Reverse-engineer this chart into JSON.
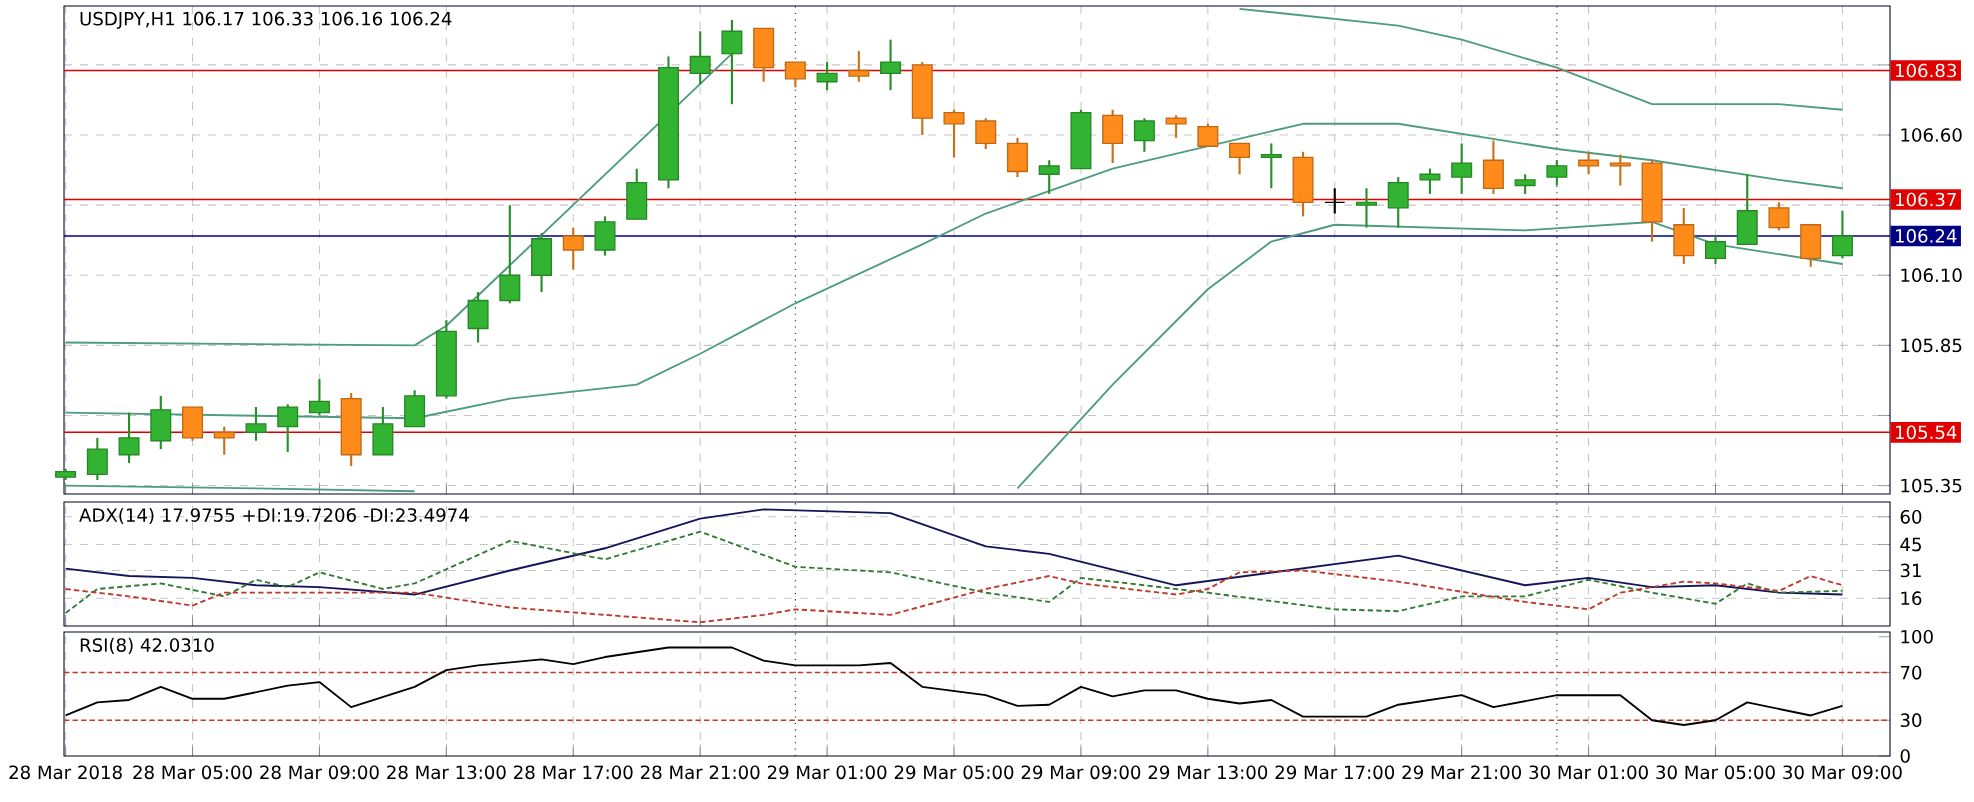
{
  "chart_data": [
    {
      "type": "candlestick",
      "title": "USDJPY,H1 106.17 106.33 106.16 106.24",
      "x": [
        "2018-03-28T01:00",
        "2018-03-28T02:00",
        "2018-03-28T03:00",
        "2018-03-28T04:00",
        "2018-03-28T05:00",
        "2018-03-28T06:00",
        "2018-03-28T07:00",
        "2018-03-28T08:00",
        "2018-03-28T09:00",
        "2018-03-28T10:00",
        "2018-03-28T11:00",
        "2018-03-28T12:00",
        "2018-03-28T13:00",
        "2018-03-28T14:00",
        "2018-03-28T15:00",
        "2018-03-28T16:00",
        "2018-03-28T17:00",
        "2018-03-28T18:00",
        "2018-03-28T19:00",
        "2018-03-28T20:00",
        "2018-03-28T21:00",
        "2018-03-28T22:00",
        "2018-03-28T23:00",
        "2018-03-29T00:00",
        "2018-03-29T01:00",
        "2018-03-29T02:00",
        "2018-03-29T03:00",
        "2018-03-29T04:00",
        "2018-03-29T05:00",
        "2018-03-29T06:00",
        "2018-03-29T07:00",
        "2018-03-29T08:00",
        "2018-03-29T09:00",
        "2018-03-29T10:00",
        "2018-03-29T11:00",
        "2018-03-29T12:00",
        "2018-03-29T13:00",
        "2018-03-29T14:00",
        "2018-03-29T15:00",
        "2018-03-29T16:00",
        "2018-03-29T17:00",
        "2018-03-29T18:00",
        "2018-03-29T19:00",
        "2018-03-29T20:00",
        "2018-03-29T21:00",
        "2018-03-29T22:00",
        "2018-03-29T23:00",
        "2018-03-30T00:00",
        "2018-03-30T01:00",
        "2018-03-30T02:00",
        "2018-03-30T03:00",
        "2018-03-30T04:00",
        "2018-03-30T05:00",
        "2018-03-30T06:00",
        "2018-03-30T07:00",
        "2018-03-30T08:00",
        "2018-03-30T09:00"
      ],
      "ohlc": [
        [
          105.38,
          105.41,
          105.37,
          105.4
        ],
        [
          105.39,
          105.52,
          105.37,
          105.48
        ],
        [
          105.46,
          105.61,
          105.43,
          105.52
        ],
        [
          105.51,
          105.67,
          105.48,
          105.62
        ],
        [
          105.63,
          105.63,
          105.51,
          105.52
        ],
        [
          105.54,
          105.56,
          105.46,
          105.52
        ],
        [
          105.54,
          105.63,
          105.51,
          105.57
        ],
        [
          105.56,
          105.64,
          105.47,
          105.63
        ],
        [
          105.61,
          105.73,
          105.6,
          105.65
        ],
        [
          105.66,
          105.68,
          105.42,
          105.46
        ],
        [
          105.46,
          105.63,
          105.46,
          105.57
        ],
        [
          105.56,
          105.69,
          105.56,
          105.67
        ],
        [
          105.67,
          105.94,
          105.66,
          105.9
        ],
        [
          105.91,
          106.04,
          105.86,
          106.01
        ],
        [
          106.01,
          106.35,
          106.0,
          106.1
        ],
        [
          106.1,
          106.25,
          106.04,
          106.23
        ],
        [
          106.24,
          106.27,
          106.12,
          106.19
        ],
        [
          106.19,
          106.31,
          106.17,
          106.29
        ],
        [
          106.3,
          106.48,
          106.3,
          106.43
        ],
        [
          106.44,
          106.88,
          106.41,
          106.84
        ],
        [
          106.82,
          106.97,
          106.78,
          106.88
        ],
        [
          106.89,
          107.01,
          106.71,
          106.97
        ],
        [
          106.98,
          106.98,
          106.79,
          106.84
        ],
        [
          106.86,
          106.86,
          106.77,
          106.8
        ],
        [
          106.79,
          106.86,
          106.76,
          106.82
        ],
        [
          106.83,
          106.9,
          106.79,
          106.81
        ],
        [
          106.82,
          106.94,
          106.76,
          106.86
        ],
        [
          106.85,
          106.86,
          106.6,
          106.66
        ],
        [
          106.68,
          106.69,
          106.52,
          106.64
        ],
        [
          106.65,
          106.66,
          106.55,
          106.57
        ],
        [
          106.57,
          106.59,
          106.45,
          106.47
        ],
        [
          106.46,
          106.51,
          106.39,
          106.49
        ],
        [
          106.48,
          106.69,
          106.48,
          106.68
        ],
        [
          106.67,
          106.69,
          106.5,
          106.57
        ],
        [
          106.58,
          106.66,
          106.54,
          106.65
        ],
        [
          106.66,
          106.67,
          106.59,
          106.64
        ],
        [
          106.63,
          106.64,
          106.56,
          106.56
        ],
        [
          106.57,
          106.57,
          106.46,
          106.52
        ],
        [
          106.52,
          106.57,
          106.41,
          106.53
        ],
        [
          106.52,
          106.54,
          106.31,
          106.36
        ],
        [
          106.36,
          106.41,
          106.32,
          106.36
        ],
        [
          106.35,
          106.41,
          106.27,
          106.36
        ],
        [
          106.34,
          106.45,
          106.27,
          106.43
        ],
        [
          106.44,
          106.48,
          106.39,
          106.46
        ],
        [
          106.45,
          106.57,
          106.39,
          106.5
        ],
        [
          106.51,
          106.58,
          106.39,
          106.41
        ],
        [
          106.42,
          106.46,
          106.39,
          106.44
        ],
        [
          106.45,
          106.51,
          106.42,
          106.49
        ],
        [
          106.51,
          106.54,
          106.46,
          106.49
        ],
        [
          106.5,
          106.53,
          106.42,
          106.49
        ],
        [
          106.5,
          106.51,
          106.22,
          106.29
        ],
        [
          106.28,
          106.34,
          106.14,
          106.17
        ],
        [
          106.16,
          106.24,
          106.14,
          106.22
        ],
        [
          106.21,
          106.46,
          106.21,
          106.33
        ],
        [
          106.34,
          106.36,
          106.26,
          106.27
        ],
        [
          106.28,
          106.28,
          106.13,
          106.16
        ],
        [
          106.17,
          106.33,
          106.16,
          106.24
        ]
      ],
      "colors": [
        "#32b432",
        "#32b432",
        "#32b432",
        "#32b432",
        "#ff8c1a",
        "#ff8c1a",
        "#32b432",
        "#32b432",
        "#32b432",
        "#ff8c1a",
        "#32b432",
        "#32b432",
        "#32b432",
        "#32b432",
        "#32b432",
        "#32b432",
        "#ff8c1a",
        "#32b432",
        "#32b432",
        "#32b432",
        "#32b432",
        "#32b432",
        "#ff8c1a",
        "#ff8c1a",
        "#32b432",
        "#ff8c1a",
        "#32b432",
        "#ff8c1a",
        "#ff8c1a",
        "#ff8c1a",
        "#ff8c1a",
        "#32b432",
        "#32b432",
        "#ff8c1a",
        "#32b432",
        "#ff8c1a",
        "#ff8c1a",
        "#ff8c1a",
        "#32b432",
        "#ff8c1a",
        "#000000",
        "#32b432",
        "#32b432",
        "#32b432",
        "#32b432",
        "#ff8c1a",
        "#32b432",
        "#32b432",
        "#ff8c1a",
        "#ff8c1a",
        "#ff8c1a",
        "#ff8c1a",
        "#32b432",
        "#32b432",
        "#ff8c1a",
        "#ff8c1a",
        "#32b432"
      ],
      "series": [
        {
          "type": "line",
          "color": "#4e9c7e",
          "x": [
            "2018-03-28T01:00",
            "2018-03-28T07:00",
            "2018-03-28T12:00",
            "2018-03-28T13:00",
            "2018-03-29T07:00",
            "2018-03-29T10:00",
            "2018-03-29T13:00",
            "2018-03-29T15:00",
            "2018-03-29T17:00",
            "2018-03-29T23:00",
            "2018-03-30T03:00",
            "2018-03-30T05:00",
            "2018-03-30T09:00"
          ],
          "values": [
            105.35,
            105.34,
            105.33,
            null,
            105.34,
            105.71,
            106.05,
            106.22,
            106.28,
            106.26,
            106.29,
            106.21,
            106.14
          ]
        },
        {
          "type": "line",
          "color": "#4e9c7e",
          "x": [
            "2018-03-28T01:00",
            "2018-03-28T12:00",
            "2018-03-28T15:00",
            "2018-03-28T19:00",
            "2018-03-28T21:00",
            "2018-03-29T00:00",
            "2018-03-29T04:00",
            "2018-03-29T06:00",
            "2018-03-29T10:00",
            "2018-03-29T16:00",
            "2018-03-29T19:00",
            "2018-03-30T00:00",
            "2018-03-30T03:00",
            "2018-03-30T07:00",
            "2018-03-30T09:00"
          ],
          "values": [
            105.61,
            105.59,
            105.66,
            105.71,
            105.82,
            106.0,
            106.21,
            106.32,
            106.48,
            106.64,
            106.64,
            106.55,
            106.51,
            106.44,
            106.41
          ]
        },
        {
          "type": "line",
          "color": "#4e9c7e",
          "x": [
            "2018-03-28T01:00",
            "2018-03-28T12:00",
            "2018-03-28T13:00",
            "2018-03-28T22:00",
            "2018-03-29T00:00",
            "2018-03-29T14:00",
            "2018-03-29T19:00",
            "2018-03-29T21:00",
            "2018-03-30T00:00",
            "2018-03-30T03:00",
            "2018-03-30T07:00",
            "2018-03-30T09:00"
          ],
          "values": [
            105.86,
            105.85,
            105.92,
            106.89,
            null,
            107.05,
            106.99,
            106.94,
            106.84,
            106.71,
            106.71,
            106.69
          ]
        }
      ],
      "xlim": [
        "2018-03-28T00:57",
        "2018-03-30T10:30"
      ],
      "xticks": [
        {
          "value": "2018-03-28T01:00",
          "label": null
        },
        {
          "value": "2018-03-28T05:00",
          "label": null
        },
        {
          "value": "2018-03-28T09:00",
          "label": null
        },
        {
          "value": "2018-03-28T13:00",
          "label": null
        },
        {
          "value": "2018-03-28T17:00",
          "label": null
        },
        {
          "value": "2018-03-28T21:00",
          "label": null
        },
        {
          "value": "2018-03-29T01:00",
          "label": null
        },
        {
          "value": "2018-03-29T05:00",
          "label": null
        },
        {
          "value": "2018-03-29T09:00",
          "label": null
        },
        {
          "value": "2018-03-29T13:00",
          "label": null
        },
        {
          "value": "2018-03-29T17:00",
          "label": null
        },
        {
          "value": "2018-03-29T21:00",
          "label": null
        },
        {
          "value": "2018-03-30T01:00",
          "label": null
        },
        {
          "value": "2018-03-30T05:00",
          "label": null
        },
        {
          "value": "2018-03-30T09:00",
          "label": null
        }
      ],
      "ylim": [
        105.32,
        107.06
      ],
      "yticks": [
        105.35,
        {
          "value": 105.6,
          "label": null
        },
        105.85,
        {
          "value": 106.1,
          "label": "106.10"
        },
        {
          "value": 106.35,
          "label": null
        },
        {
          "value": 106.6,
          "label": "106.60"
        },
        {
          "value": 106.85,
          "label": null
        }
      ],
      "ref_lines": [
        {
          "axis": "y",
          "value": 106.83,
          "label": "106.83",
          "color": "#e00000"
        },
        {
          "axis": "y",
          "value": 106.37,
          "label": "106.37",
          "color": "#e00000"
        },
        {
          "axis": "y",
          "value": 105.54,
          "label": "105.54",
          "color": "#e00000"
        },
        {
          "axis": "y",
          "value": 106.24,
          "label": "106.24",
          "color": "#000080"
        },
        {
          "axis": "x",
          "value": "2018-03-29T00:00",
          "color": "#000000",
          "line_style": "dotted"
        },
        {
          "axis": "x",
          "value": "2018-03-30T00:00",
          "color": "#000000",
          "line_style": "dotted"
        }
      ],
      "grid": true,
      "tick_labels": "y"
    },
    {
      "type": "line",
      "title": "ADX(14) 17.9755 +DI:19.7206 -DI:23.4974",
      "series": [
        {
          "color": "#14145a",
          "line_style": "solid",
          "x": [
            "2018-03-28T01:00",
            "2018-03-28T03:00",
            "2018-03-28T05:00",
            "2018-03-28T07:00",
            "2018-03-28T09:00",
            "2018-03-28T12:00",
            "2018-03-28T15:00",
            "2018-03-28T18:00",
            "2018-03-28T21:00",
            "2018-03-28T23:00",
            "2018-03-29T03:00",
            "2018-03-29T06:00",
            "2018-03-29T08:00",
            "2018-03-29T12:00",
            "2018-03-29T19:00",
            "2018-03-29T23:00",
            "2018-03-30T01:00",
            "2018-03-30T03:00",
            "2018-03-30T05:00",
            "2018-03-30T07:00",
            "2018-03-30T09:00"
          ],
          "values": [
            32,
            28,
            27,
            23,
            22,
            18,
            31,
            43,
            59,
            64,
            62,
            44,
            40,
            23,
            39,
            23,
            27,
            22,
            23,
            19,
            18
          ]
        },
        {
          "color": "#2e7d32",
          "line_style": "dashed",
          "x": [
            "2018-03-28T01:00",
            "2018-03-28T02:00",
            "2018-03-28T04:00",
            "2018-03-28T06:00",
            "2018-03-28T07:00",
            "2018-03-28T08:00",
            "2018-03-28T09:00",
            "2018-03-28T11:00",
            "2018-03-28T12:00",
            "2018-03-28T15:00",
            "2018-03-28T18:00",
            "2018-03-28T21:00",
            "2018-03-29T00:00",
            "2018-03-29T03:00",
            "2018-03-29T06:00",
            "2018-03-29T08:00",
            "2018-03-29T09:00",
            "2018-03-29T13:00",
            "2018-03-29T17:00",
            "2018-03-29T19:00",
            "2018-03-29T21:00",
            "2018-03-29T23:00",
            "2018-03-30T01:00",
            "2018-03-30T03:00",
            "2018-03-30T05:00",
            "2018-03-30T06:00",
            "2018-03-30T07:00",
            "2018-03-30T09:00"
          ],
          "values": [
            8,
            21,
            24,
            17,
            26,
            22,
            30,
            21,
            24,
            47,
            37,
            52,
            33,
            30,
            19,
            14,
            27,
            19,
            10,
            9,
            17,
            17,
            26,
            19,
            13,
            24,
            19,
            20
          ]
        },
        {
          "color": "#c0392b",
          "line_style": "dashed",
          "x": [
            "2018-03-28T01:00",
            "2018-03-28T03:00",
            "2018-03-28T05:00",
            "2018-03-28T06:00",
            "2018-03-28T09:00",
            "2018-03-28T12:00",
            "2018-03-28T15:00",
            "2018-03-28T18:00",
            "2018-03-28T21:00",
            "2018-03-28T23:00",
            "2018-03-29T00:00",
            "2018-03-29T03:00",
            "2018-03-29T06:00",
            "2018-03-29T08:00",
            "2018-03-29T09:00",
            "2018-03-29T12:00",
            "2018-03-29T13:00",
            "2018-03-29T14:00",
            "2018-03-29T16:00",
            "2018-03-29T19:00",
            "2018-03-29T23:00",
            "2018-03-30T01:00",
            "2018-03-30T02:00",
            "2018-03-30T04:00",
            "2018-03-30T05:00",
            "2018-03-30T07:00",
            "2018-03-30T08:00",
            "2018-03-30T09:00"
          ],
          "values": [
            21,
            17,
            12,
            19,
            19,
            19,
            11,
            7,
            3,
            7,
            10,
            7,
            21,
            28,
            24,
            18,
            21,
            30,
            31,
            25,
            14,
            10,
            19,
            25,
            24,
            20,
            28,
            23
          ]
        }
      ],
      "xlim": [
        "2018-03-28T00:57",
        "2018-03-30T10:30"
      ],
      "xticks": [
        {
          "value": "2018-03-28T01:00",
          "label": null
        },
        {
          "value": "2018-03-28T05:00",
          "label": null
        },
        {
          "value": "2018-03-28T09:00",
          "label": null
        },
        {
          "value": "2018-03-28T13:00",
          "label": null
        },
        {
          "value": "2018-03-28T17:00",
          "label": null
        },
        {
          "value": "2018-03-28T21:00",
          "label": null
        },
        {
          "value": "2018-03-29T01:00",
          "label": null
        },
        {
          "value": "2018-03-29T05:00",
          "label": null
        },
        {
          "value": "2018-03-29T09:00",
          "label": null
        },
        {
          "value": "2018-03-29T13:00",
          "label": null
        },
        {
          "value": "2018-03-29T17:00",
          "label": null
        },
        {
          "value": "2018-03-29T21:00",
          "label": null
        },
        {
          "value": "2018-03-30T01:00",
          "label": null
        },
        {
          "value": "2018-03-30T05:00",
          "label": null
        },
        {
          "value": "2018-03-30T09:00",
          "label": null
        }
      ],
      "ylim": [
        1,
        68
      ],
      "yticks": [
        60,
        45,
        31,
        16
      ],
      "ref_lines": [
        {
          "axis": "x",
          "value": "2018-03-29T00:00",
          "color": "#000000",
          "line_style": "dotted"
        },
        {
          "axis": "x",
          "value": "2018-03-30T00:00",
          "color": "#000000",
          "line_style": "dotted"
        }
      ],
      "grid": true,
      "tick_labels": "y"
    },
    {
      "type": "line",
      "title": "RSI(8) 42.0310",
      "series": [
        {
          "color": "#000000",
          "line_style": "solid",
          "x": [
            "2018-03-28T01:00",
            "2018-03-28T02:00",
            "2018-03-28T03:00",
            "2018-03-28T04:00",
            "2018-03-28T05:00",
            "2018-03-28T06:00",
            "2018-03-28T08:00",
            "2018-03-28T09:00",
            "2018-03-28T10:00",
            "2018-03-28T12:00",
            "2018-03-28T13:00",
            "2018-03-28T14:00",
            "2018-03-28T16:00",
            "2018-03-28T17:00",
            "2018-03-28T18:00",
            "2018-03-28T20:00",
            "2018-03-28T22:00",
            "2018-03-28T23:00",
            "2018-03-29T00:00",
            "2018-03-29T02:00",
            "2018-03-29T03:00",
            "2018-03-29T04:00",
            "2018-03-29T06:00",
            "2018-03-29T07:00",
            "2018-03-29T08:00",
            "2018-03-29T09:00",
            "2018-03-29T10:00",
            "2018-03-29T11:00",
            "2018-03-29T12:00",
            "2018-03-29T13:00",
            "2018-03-29T14:00",
            "2018-03-29T15:00",
            "2018-03-29T16:00",
            "2018-03-29T18:00",
            "2018-03-29T19:00",
            "2018-03-29T21:00",
            "2018-03-29T22:00",
            "2018-03-30T00:00",
            "2018-03-30T02:00",
            "2018-03-30T03:00",
            "2018-03-30T04:00",
            "2018-03-30T05:00",
            "2018-03-30T06:00",
            "2018-03-30T08:00",
            "2018-03-30T09:00"
          ],
          "values": [
            34,
            45,
            47,
            58,
            48,
            48,
            59,
            62,
            41,
            58,
            72,
            76,
            81,
            77,
            83,
            91,
            91,
            80,
            76,
            76,
            78,
            58,
            51,
            42,
            43,
            58,
            50,
            55,
            55,
            48,
            44,
            47,
            33,
            33,
            43,
            51,
            41,
            51,
            51,
            30,
            26,
            30,
            45,
            34,
            42
          ]
        }
      ],
      "xlim": [
        "2018-03-28T00:57",
        "2018-03-30T10:30"
      ],
      "xticks": [
        {
          "value": "2018-03-28T01:00",
          "label": "28 Mar 2018"
        },
        {
          "value": "2018-03-28T05:00",
          "label": "28 Mar 05:00"
        },
        {
          "value": "2018-03-28T09:00",
          "label": "28 Mar 09:00"
        },
        {
          "value": "2018-03-28T13:00",
          "label": "28 Mar 13:00"
        },
        {
          "value": "2018-03-28T17:00",
          "label": "28 Mar 17:00"
        },
        {
          "value": "2018-03-28T21:00",
          "label": "28 Mar 21:00"
        },
        {
          "value": "2018-03-29T01:00",
          "label": "29 Mar 01:00"
        },
        {
          "value": "2018-03-29T05:00",
          "label": "29 Mar 05:00"
        },
        {
          "value": "2018-03-29T09:00",
          "label": "29 Mar 09:00"
        },
        {
          "value": "2018-03-29T13:00",
          "label": "29 Mar 13:00"
        },
        {
          "value": "2018-03-29T17:00",
          "label": "29 Mar 17:00"
        },
        {
          "value": "2018-03-29T21:00",
          "label": "29 Mar 21:00"
        },
        {
          "value": "2018-03-30T01:00",
          "label": "30 Mar 01:00"
        },
        {
          "value": "2018-03-30T05:00",
          "label": "30 Mar 05:00"
        },
        {
          "value": "2018-03-30T09:00",
          "label": "30 Mar 09:00"
        }
      ],
      "ylim": [
        0,
        104
      ],
      "yticks": [
        100,
        70,
        30,
        0
      ],
      "ref_lines": [
        {
          "axis": "y",
          "value": 70,
          "color": "#c0392b",
          "line_style": "dashed"
        },
        {
          "axis": "y",
          "value": 30,
          "color": "#c0392b",
          "line_style": "dashed"
        },
        {
          "axis": "x",
          "value": "2018-03-29T00:00",
          "color": "#000000",
          "line_style": "dotted"
        },
        {
          "axis": "x",
          "value": "2018-03-30T00:00",
          "color": "#000000",
          "line_style": "dotted"
        }
      ],
      "grid": "x"
    }
  ]
}
